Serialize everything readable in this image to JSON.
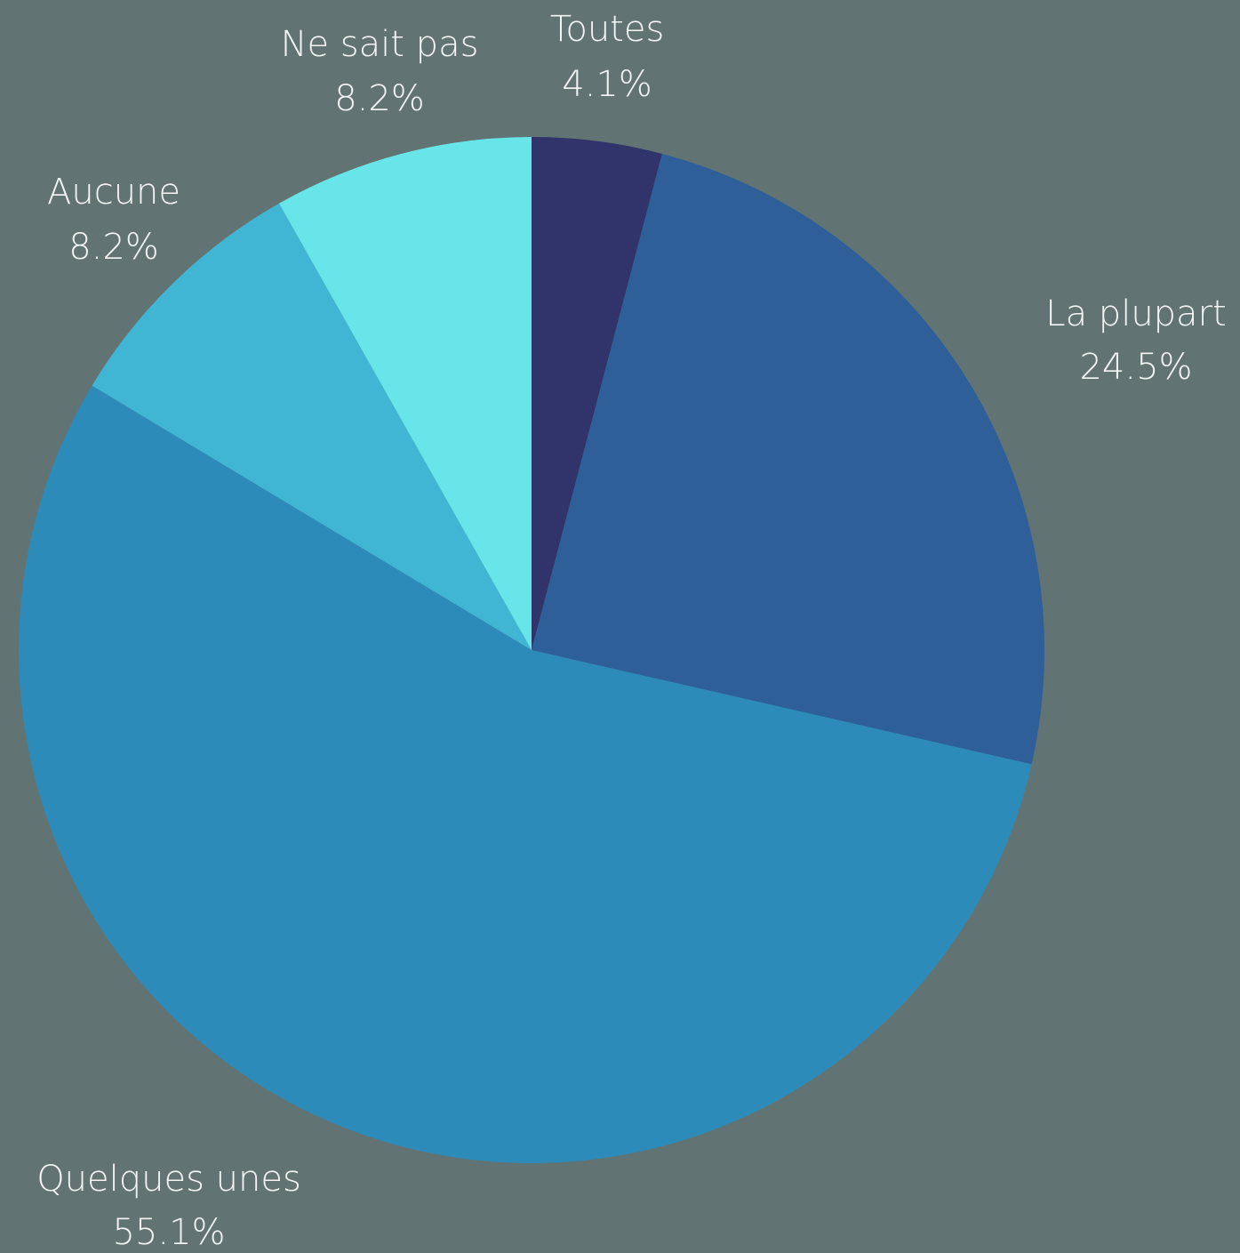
{
  "chart_data": {
    "type": "pie",
    "categories": [
      "Toutes",
      "La plupart",
      "Quelques unes",
      "Aucune",
      "Ne sait pas"
    ],
    "values": [
      4.1,
      24.5,
      55.1,
      8.2,
      8.2
    ],
    "value_labels": [
      "4.1%",
      "24.5%",
      "55.1%",
      "8.2%",
      "8.2%"
    ],
    "colors": [
      "#30346a",
      "#2e5f99",
      "#2d8bba",
      "#41b6d4",
      "#68e5e8"
    ]
  }
}
